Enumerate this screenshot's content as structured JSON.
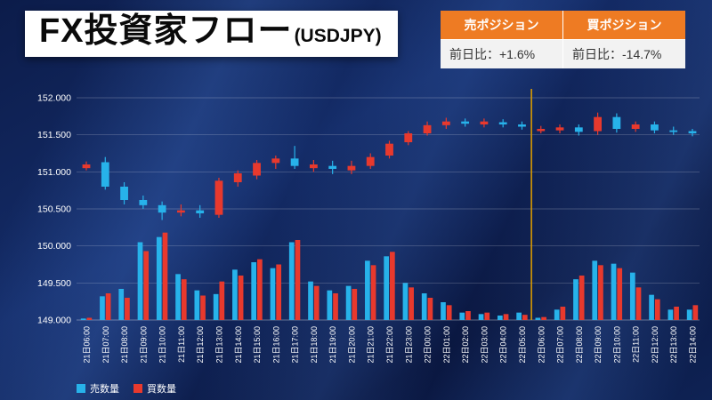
{
  "window": {
    "title_main": "FX投資家フロー",
    "title_sub": "(USDJPY)"
  },
  "position_table": {
    "header_bg": "#ee7b23",
    "columns": [
      {
        "header": "売ポジション",
        "value": "前日比：+1.6%"
      },
      {
        "header": "買ポジション",
        "value": "前日比：-14.7%"
      }
    ]
  },
  "legend": {
    "items": [
      {
        "label": "売数量",
        "color": "#27b2ea"
      },
      {
        "label": "買数量",
        "color": "#e8392d"
      }
    ]
  },
  "chart_data": {
    "type": "candlestick",
    "pair": "USDJPY",
    "ylim": [
      149.0,
      152.0
    ],
    "y_ticks": [
      149.0,
      149.5,
      150.0,
      150.5,
      151.0,
      151.5,
      152.0
    ],
    "grid": true,
    "x_labels": [
      "21日06:00",
      "21日07:00",
      "21日08:00",
      "21日09:00",
      "21日10:00",
      "21日11:00",
      "21日12:00",
      "21日13:00",
      "21日14:00",
      "21日15:00",
      "21日16:00",
      "21日17:00",
      "21日18:00",
      "21日19:00",
      "21日20:00",
      "21日21:00",
      "21日22:00",
      "21日23:00",
      "22日00:00",
      "22日01:00",
      "22日02:00",
      "22日03:00",
      "22日04:00",
      "22日05:00",
      "22日06:00",
      "22日07:00",
      "22日08:00",
      "22日09:00",
      "22日10:00",
      "22日11:00",
      "22日12:00",
      "22日13:00",
      "22日14:00"
    ],
    "candles": [
      {
        "o": 151.05,
        "h": 151.14,
        "l": 151.02,
        "c": 151.1
      },
      {
        "o": 151.13,
        "h": 151.2,
        "l": 150.76,
        "c": 150.8
      },
      {
        "o": 150.8,
        "h": 150.86,
        "l": 150.56,
        "c": 150.62
      },
      {
        "o": 150.62,
        "h": 150.68,
        "l": 150.5,
        "c": 150.55
      },
      {
        "o": 150.55,
        "h": 150.6,
        "l": 150.35,
        "c": 150.45
      },
      {
        "o": 150.45,
        "h": 150.56,
        "l": 150.4,
        "c": 150.48
      },
      {
        "o": 150.48,
        "h": 150.55,
        "l": 150.38,
        "c": 150.44
      },
      {
        "o": 150.42,
        "h": 150.92,
        "l": 150.38,
        "c": 150.88
      },
      {
        "o": 150.86,
        "h": 151.02,
        "l": 150.8,
        "c": 150.98
      },
      {
        "o": 150.95,
        "h": 151.16,
        "l": 150.9,
        "c": 151.12
      },
      {
        "o": 151.12,
        "h": 151.22,
        "l": 151.04,
        "c": 151.18
      },
      {
        "o": 151.18,
        "h": 151.35,
        "l": 151.04,
        "c": 151.08
      },
      {
        "o": 151.05,
        "h": 151.16,
        "l": 151.0,
        "c": 151.1
      },
      {
        "o": 151.08,
        "h": 151.15,
        "l": 150.97,
        "c": 151.04
      },
      {
        "o": 151.02,
        "h": 151.15,
        "l": 150.97,
        "c": 151.08
      },
      {
        "o": 151.08,
        "h": 151.25,
        "l": 151.04,
        "c": 151.2
      },
      {
        "o": 151.22,
        "h": 151.42,
        "l": 151.18,
        "c": 151.38
      },
      {
        "o": 151.4,
        "h": 151.55,
        "l": 151.36,
        "c": 151.52
      },
      {
        "o": 151.52,
        "h": 151.68,
        "l": 151.49,
        "c": 151.63
      },
      {
        "o": 151.63,
        "h": 151.73,
        "l": 151.58,
        "c": 151.68
      },
      {
        "o": 151.68,
        "h": 151.72,
        "l": 151.61,
        "c": 151.65
      },
      {
        "o": 151.64,
        "h": 151.72,
        "l": 151.6,
        "c": 151.68
      },
      {
        "o": 151.67,
        "h": 151.71,
        "l": 151.6,
        "c": 151.64
      },
      {
        "o": 151.64,
        "h": 151.68,
        "l": 151.57,
        "c": 151.61
      },
      {
        "o": 151.55,
        "h": 151.62,
        "l": 151.52,
        "c": 151.58
      },
      {
        "o": 151.56,
        "h": 151.64,
        "l": 151.52,
        "c": 151.6
      },
      {
        "o": 151.6,
        "h": 151.64,
        "l": 151.49,
        "c": 151.54
      },
      {
        "o": 151.55,
        "h": 151.8,
        "l": 151.5,
        "c": 151.74
      },
      {
        "o": 151.74,
        "h": 151.79,
        "l": 151.53,
        "c": 151.58
      },
      {
        "o": 151.58,
        "h": 151.68,
        "l": 151.54,
        "c": 151.64
      },
      {
        "o": 151.64,
        "h": 151.68,
        "l": 151.52,
        "c": 151.56
      },
      {
        "o": 151.56,
        "h": 151.61,
        "l": 151.5,
        "c": 151.55
      },
      {
        "o": 151.55,
        "h": 151.58,
        "l": 151.48,
        "c": 151.52
      }
    ],
    "volume_baseline": 149.0,
    "volume_sell": [
      0.02,
      0.32,
      0.42,
      1.05,
      1.12,
      0.62,
      0.4,
      0.35,
      0.68,
      0.78,
      0.7,
      1.05,
      0.52,
      0.4,
      0.46,
      0.8,
      0.86,
      0.5,
      0.36,
      0.24,
      0.1,
      0.08,
      0.06,
      0.1,
      0.03,
      0.14,
      0.55,
      0.8,
      0.76,
      0.64,
      0.34,
      0.14,
      0.14
    ],
    "volume_buy": [
      0.03,
      0.36,
      0.3,
      0.93,
      1.18,
      0.55,
      0.33,
      0.52,
      0.6,
      0.82,
      0.75,
      1.08,
      0.46,
      0.36,
      0.42,
      0.74,
      0.92,
      0.44,
      0.3,
      0.2,
      0.12,
      0.1,
      0.08,
      0.07,
      0.04,
      0.18,
      0.6,
      0.74,
      0.7,
      0.44,
      0.28,
      0.18,
      0.2
    ],
    "marker_index": 23.5,
    "legend_position": "bottom-left",
    "colors": {
      "buy": "#e8392d",
      "sell": "#27b2ea",
      "grid": "rgba(255,255,255,0.28)",
      "marker": "#d99a00",
      "axis_text": "#ffffff"
    }
  }
}
